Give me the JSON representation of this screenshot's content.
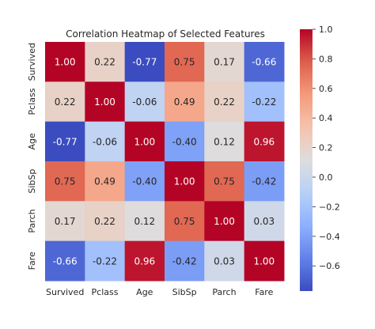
{
  "chart_data": {
    "type": "heatmap",
    "title": "Correlation Heatmap of Selected Features",
    "x_labels": [
      "Survived",
      "Pclass",
      "Age",
      "SibSp",
      "Parch",
      "Fare"
    ],
    "y_labels": [
      "Survived",
      "Pclass",
      "Age",
      "SibSp",
      "Parch",
      "Fare"
    ],
    "values": [
      [
        1.0,
        0.22,
        -0.77,
        0.75,
        0.17,
        -0.66
      ],
      [
        0.22,
        1.0,
        -0.06,
        0.49,
        0.22,
        -0.22
      ],
      [
        -0.77,
        -0.06,
        1.0,
        -0.4,
        0.12,
        0.96
      ],
      [
        0.75,
        0.49,
        -0.4,
        1.0,
        0.75,
        -0.42
      ],
      [
        0.17,
        0.22,
        0.12,
        0.75,
        1.0,
        0.03
      ],
      [
        -0.66,
        -0.22,
        0.96,
        -0.42,
        0.03,
        1.0
      ]
    ],
    "colormap": "coolwarm",
    "colorbar": {
      "min": -0.77,
      "max": 1.0,
      "ticks": [
        -0.6,
        -0.4,
        -0.2,
        0.0,
        0.2,
        0.4,
        0.6,
        0.8,
        1.0
      ],
      "tick_labels": [
        "−0.6",
        "−0.4",
        "−0.2",
        "0.0",
        "0.2",
        "0.4",
        "0.6",
        "0.8",
        "1.0"
      ]
    },
    "annotation_format": "0.00",
    "grid": false,
    "legend": "colorbar-right"
  }
}
